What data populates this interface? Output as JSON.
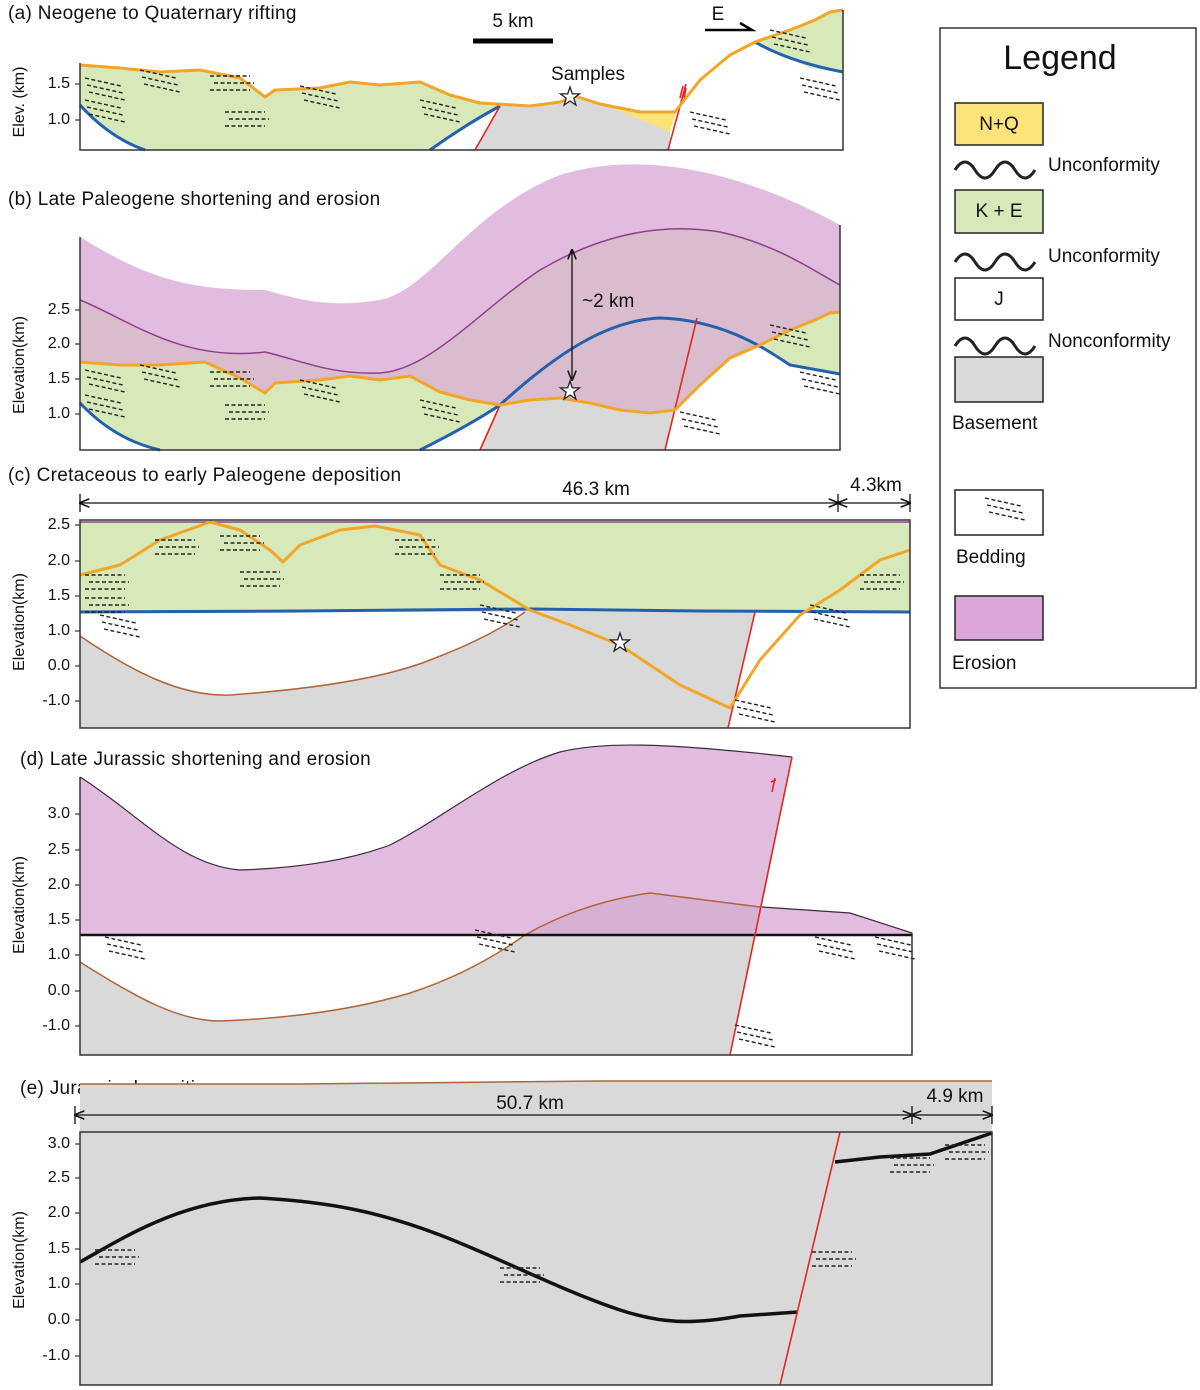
{
  "panels": [
    {
      "title": "(a) Neogene to Quaternary rifting",
      "y_label": "Elev. (km)",
      "yticks": [
        "1.5",
        "1.0"
      ],
      "annotations": [
        "5 km",
        "Samples",
        "E"
      ]
    },
    {
      "title": "(b) Late Paleogene shortening and erosion",
      "y_label": "Elevation(km)",
      "yticks": [
        "2.5",
        "2.0",
        "1.5",
        "1.0"
      ],
      "annotations": [
        "~2 km"
      ]
    },
    {
      "title": "(c) Cretaceous to early Paleogene deposition",
      "y_label": "Elevation(km)",
      "yticks": [
        "2.5",
        "2.0",
        "1.5",
        "1.0",
        "0.0",
        "-1.0"
      ],
      "annotations": [
        "46.3 km",
        "4.3km"
      ]
    },
    {
      "title": "(d) Late Jurassic shortening and erosion",
      "y_label": "Elevation(km)",
      "yticks": [
        "3.0",
        "2.5",
        "2.0",
        "1.5",
        "1.0",
        "0.0",
        "-1.0"
      ]
    },
    {
      "title": "(e) Jurassic deposition",
      "y_label": "Elevation(km)",
      "yticks": [
        "3.0",
        "2.5",
        "2.0",
        "1.5",
        "1.0",
        "0.0",
        "-1.0"
      ],
      "annotations": [
        "50.7 km",
        "4.9 km"
      ]
    }
  ],
  "legend": {
    "title": "Legend",
    "items": [
      "N+Q",
      "Unconformity",
      "K + E",
      "Unconformity",
      "J",
      "Nonconformity",
      "Basement",
      "Bedding",
      "Erosion"
    ]
  }
}
